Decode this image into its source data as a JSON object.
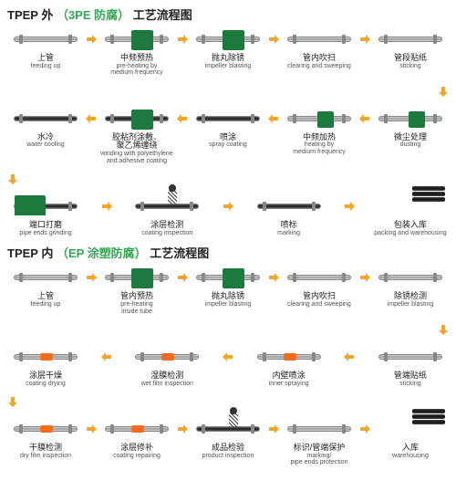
{
  "colors": {
    "arrow": "#f5a623",
    "green": "#1c7a3e",
    "orange": "#ff6b1a",
    "title_accent": "#34a853",
    "text": "#222222",
    "text_en": "#555555",
    "background": "#ffffff"
  },
  "diagrams": [
    {
      "title_pre": "TPEP 外 ",
      "title_hl": "（3PE 防腐）",
      "title_post": " 工艺流程图",
      "rows": [
        {
          "dir": "right",
          "steps": [
            {
              "cn": "上管",
              "en": "feeding up",
              "icon": "pipe"
            },
            {
              "cn": "中频预热",
              "en": "pre-heating by\nmedium frequency",
              "icon": "pipe-green"
            },
            {
              "cn": "抛丸除锈",
              "en": "impeller blasting",
              "icon": "pipe-green"
            },
            {
              "cn": "管内吹扫",
              "en": "clearing and sweeping",
              "icon": "pipe"
            },
            {
              "cn": "管段贴纸",
              "en": "sticking",
              "icon": "pipe"
            }
          ]
        },
        {
          "dir": "left",
          "steps": [
            {
              "cn": "水冷",
              "en": "water cooling",
              "icon": "pipe-dark"
            },
            {
              "cn": "胶粘剂涂敷、\n聚乙烯缠绕",
              "en": "winding with polyethylene\nand adhesive coating",
              "icon": "pipe-green-dk"
            },
            {
              "cn": "喷涂",
              "en": "spray coating",
              "icon": "pipe-dark"
            },
            {
              "cn": "中频加热",
              "en": "heating by\nmedium frequency",
              "icon": "pipe-green-sm"
            },
            {
              "cn": "微尘处理",
              "en": "dusting",
              "icon": "pipe-green-sm"
            }
          ]
        },
        {
          "dir": "right",
          "steps": [
            {
              "cn": "端口打磨",
              "en": "pipe ends grinding",
              "icon": "truck"
            },
            {
              "cn": "涂层检测",
              "en": "coating inspection",
              "icon": "spring"
            },
            {
              "cn": "喷标",
              "en": "marking",
              "icon": "pipe-dark"
            },
            {
              "cn": "包装入库",
              "en": "packing and warehousing",
              "icon": "stack"
            }
          ]
        }
      ]
    },
    {
      "title_pre": "TPEP 内 ",
      "title_hl": "（EP 涂塑防腐）",
      "title_post": " 工艺流程图",
      "rows": [
        {
          "dir": "right",
          "steps": [
            {
              "cn": "上管",
              "en": "feeding up",
              "icon": "pipe"
            },
            {
              "cn": "管内预热",
              "en": "pre-heating\ninside tube",
              "icon": "pipe-green"
            },
            {
              "cn": "抛丸除锈",
              "en": "impeller blasting",
              "icon": "pipe-green"
            },
            {
              "cn": "管内吹扫",
              "en": "clearing and sweeping",
              "icon": "pipe"
            },
            {
              "cn": "除锈检测",
              "en": "impeller blasting",
              "icon": "pipe"
            }
          ]
        },
        {
          "dir": "left",
          "steps": [
            {
              "cn": "涂层干燥",
              "en": "coating drying",
              "icon": "pipe-orange"
            },
            {
              "cn": "湿膜检测",
              "en": "wet film inspection",
              "icon": "pipe-orange"
            },
            {
              "cn": "内壁喷涂",
              "en": "inner spraying",
              "icon": "pipe-orange"
            },
            {
              "cn": "管端贴纸",
              "en": "sticking",
              "icon": "pipe"
            }
          ]
        },
        {
          "dir": "right",
          "steps": [
            {
              "cn": "干膜检测",
              "en": "dry film inspection",
              "icon": "pipe-orange"
            },
            {
              "cn": "涂层修补",
              "en": "coating repairing",
              "icon": "pipe-orange"
            },
            {
              "cn": "成品检验",
              "en": "product inspection",
              "icon": "spring"
            },
            {
              "cn": "标识/管端保护",
              "en": "marking/\npipe ends protection",
              "icon": "pipe"
            },
            {
              "cn": "入库",
              "en": "warehousing",
              "icon": "stack"
            }
          ]
        }
      ]
    }
  ]
}
